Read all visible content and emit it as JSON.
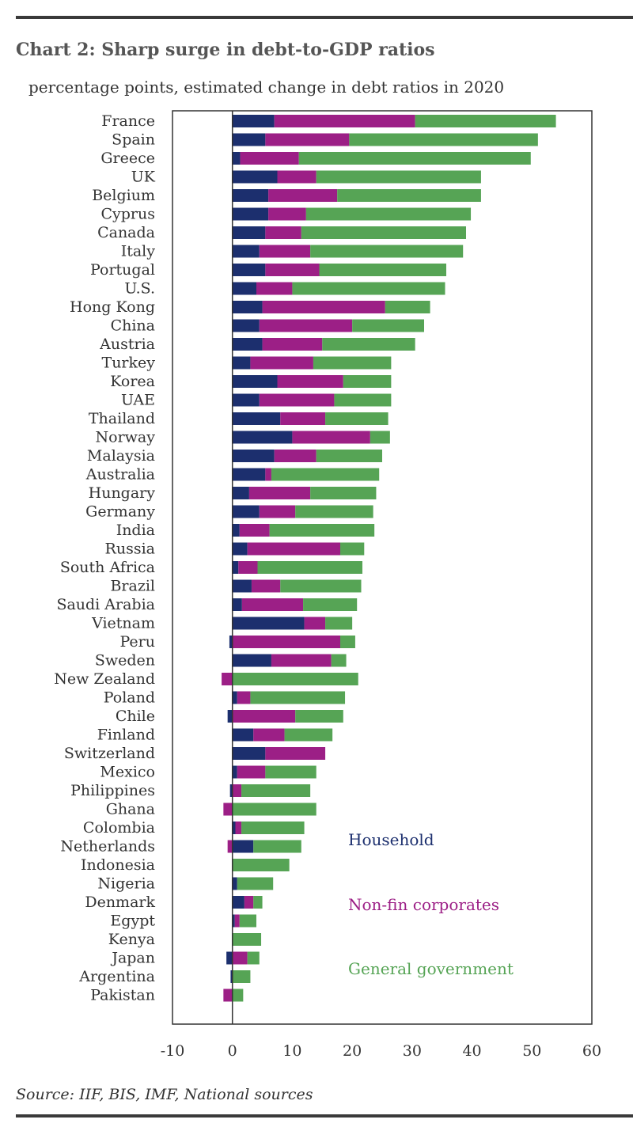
{
  "header": {
    "title": "Chart 2: Sharp surge in debt-to-GDP ratios",
    "subtitle": "percentage points, estimated change in debt ratios in 2020"
  },
  "footer": {
    "source": "Source: IIF, BIS, IMF, National sources"
  },
  "colors": {
    "household": "#1c2f6e",
    "corporates": "#9c1f86",
    "government": "#56a455",
    "axis": "#333333"
  },
  "chart_data": {
    "type": "bar",
    "orientation": "horizontal",
    "stacked": true,
    "xlim": [
      -10,
      60
    ],
    "xticks": [
      -10,
      0,
      10,
      20,
      30,
      40,
      50,
      60
    ],
    "grid": false,
    "legend_position": "bottom-right, inside plot",
    "categories": [
      "France",
      "Spain",
      "Greece",
      "UK",
      "Belgium",
      "Cyprus",
      "Canada",
      "Italy",
      "Portugal",
      "U.S.",
      "Hong Kong",
      "China",
      "Austria",
      "Turkey",
      "Korea",
      "UAE",
      "Thailand",
      "Norway",
      "Malaysia",
      "Australia",
      "Hungary",
      "Germany",
      "India",
      "Russia",
      "South Africa",
      "Brazil",
      "Saudi Arabia",
      "Vietnam",
      "Peru",
      "Sweden",
      "New Zealand",
      "Poland",
      "Chile",
      "Finland",
      "Switzerland",
      "Mexico",
      "Philippines",
      "Ghana",
      "Colombia",
      "Netherlands",
      "Indonesia",
      "Nigeria",
      "Denmark",
      "Egypt",
      "Kenya",
      "Japan",
      "Argentina",
      "Pakistan"
    ],
    "series": [
      {
        "name": "Household",
        "color": "#1c2f6e",
        "values": [
          7,
          5.5,
          1.3,
          7.5,
          6,
          6,
          5.5,
          4.5,
          5.5,
          4,
          5,
          4.5,
          5,
          3,
          7.5,
          4.5,
          8,
          10,
          7,
          5.5,
          2.8,
          4.5,
          1.2,
          2.5,
          1,
          3.2,
          1.6,
          12,
          -0.5,
          6.5,
          0,
          0.8,
          -0.8,
          3.5,
          5.5,
          0.8,
          -0.4,
          0,
          0.5,
          3.5,
          0,
          0.8,
          2,
          0.4,
          0,
          -1,
          -0.3,
          0
        ]
      },
      {
        "name": "Non-fin corporates",
        "color": "#9c1f86",
        "values": [
          23.5,
          14,
          9.8,
          6.5,
          11.5,
          6.3,
          6,
          8.5,
          9,
          6,
          20.5,
          15.5,
          10,
          10.5,
          11,
          12.5,
          7.5,
          13,
          7,
          1,
          10.2,
          6,
          5,
          15.5,
          3.2,
          4.8,
          10.2,
          3.5,
          18,
          10,
          -1.8,
          2.2,
          10.5,
          5.2,
          10,
          4.7,
          1.5,
          -1.5,
          1,
          -0.8,
          0,
          0,
          1.5,
          0.8,
          0,
          2.5,
          0,
          -1.5
        ]
      },
      {
        "name": "General government",
        "color": "#56a455",
        "values": [
          23.5,
          31.5,
          38.7,
          27.5,
          24,
          27.5,
          27.5,
          25.5,
          21.2,
          25.5,
          7.5,
          12,
          15.5,
          13,
          8,
          9.5,
          10.5,
          3.3,
          11,
          18,
          11,
          13,
          17.5,
          4,
          17.5,
          13.5,
          9,
          4.5,
          2.5,
          2.5,
          21,
          15.8,
          8,
          8,
          0,
          8.5,
          11.5,
          14,
          10.5,
          8,
          9.5,
          6,
          1.5,
          2.8,
          4.8,
          2,
          3,
          1.8
        ]
      }
    ]
  }
}
